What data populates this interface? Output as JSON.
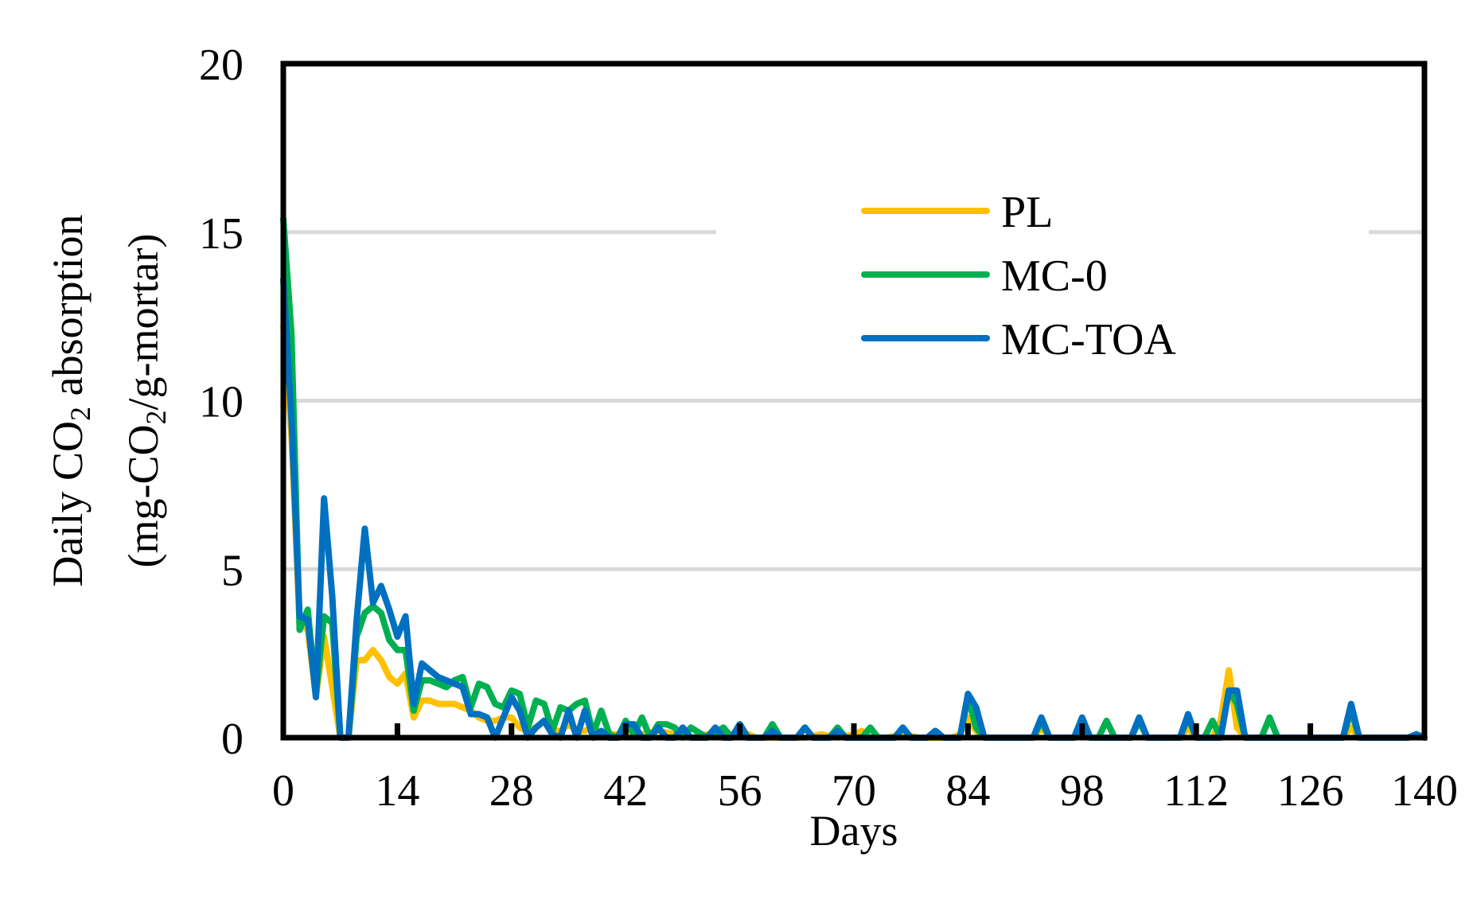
{
  "chart_data": {
    "type": "line",
    "xlabel": "Days",
    "ylabel": {
      "line1": {
        "pre": "Daily CO",
        "sub": "2",
        "post": " absorption"
      },
      "line2": {
        "pre": "(mg-CO",
        "sub": "2",
        "post": "/g-mortar)"
      }
    },
    "xlim": [
      0,
      140
    ],
    "ylim": [
      0,
      20
    ],
    "x_ticks": [
      0,
      14,
      28,
      42,
      56,
      70,
      84,
      98,
      112,
      126,
      140
    ],
    "y_ticks": [
      0,
      5,
      10,
      15,
      20
    ],
    "grid": "horizontal",
    "legend_position": "upper-right",
    "series": [
      {
        "name": "PL",
        "color": "#FFC000",
        "points": [
          [
            0,
            12.2
          ],
          [
            1,
            9.0
          ],
          [
            2,
            3.4
          ],
          [
            3,
            3.2
          ],
          [
            4,
            1.2
          ],
          [
            5,
            3.0
          ],
          [
            6,
            1.5
          ],
          [
            7,
            0
          ],
          [
            8,
            0
          ],
          [
            9,
            2.3
          ],
          [
            10,
            2.3
          ],
          [
            11,
            2.6
          ],
          [
            12,
            2.3
          ],
          [
            13,
            1.8
          ],
          [
            14,
            1.6
          ],
          [
            15,
            1.9
          ],
          [
            16,
            0.6
          ],
          [
            17,
            1.1
          ],
          [
            18,
            1.1
          ],
          [
            19,
            1.0
          ],
          [
            20,
            1.0
          ],
          [
            21,
            1.0
          ],
          [
            22,
            0.9
          ],
          [
            23,
            0.8
          ],
          [
            24,
            0.6
          ],
          [
            25,
            0.5
          ],
          [
            26,
            0.5
          ],
          [
            27,
            0.6
          ],
          [
            28,
            0.6
          ],
          [
            29,
            0.3
          ],
          [
            30,
            0.2
          ],
          [
            31,
            0.3
          ],
          [
            32,
            0.5
          ],
          [
            33,
            0.2
          ],
          [
            34,
            0.2
          ],
          [
            35,
            0.4
          ],
          [
            36,
            0.2
          ],
          [
            37,
            0.2
          ],
          [
            38,
            0.3
          ],
          [
            39,
            0.1
          ],
          [
            40,
            0.1
          ],
          [
            41,
            0.1
          ],
          [
            42,
            0.2
          ],
          [
            44,
            0.1
          ],
          [
            46,
            0.2
          ],
          [
            48,
            0.1
          ],
          [
            50,
            0
          ],
          [
            52,
            0.1
          ],
          [
            54,
            0
          ],
          [
            56,
            0.2
          ],
          [
            58,
            0
          ],
          [
            60,
            0
          ],
          [
            62,
            0
          ],
          [
            64,
            0
          ],
          [
            66,
            0.1
          ],
          [
            68,
            0
          ],
          [
            70,
            0.1
          ],
          [
            71,
            0.2
          ],
          [
            72,
            0
          ],
          [
            74,
            0
          ],
          [
            76,
            0.1
          ],
          [
            78,
            0
          ],
          [
            80,
            0
          ],
          [
            82,
            0
          ],
          [
            83,
            0.1
          ],
          [
            84,
            0.6
          ],
          [
            85,
            0.2
          ],
          [
            86,
            0
          ],
          [
            90,
            0
          ],
          [
            92,
            0
          ],
          [
            93,
            0.3
          ],
          [
            94,
            0
          ],
          [
            97,
            0
          ],
          [
            98,
            0.5
          ],
          [
            99,
            0
          ],
          [
            104,
            0
          ],
          [
            105,
            0.5
          ],
          [
            106,
            0
          ],
          [
            110,
            0
          ],
          [
            111,
            0.3
          ],
          [
            112,
            0
          ],
          [
            114,
            0
          ],
          [
            115,
            0.5
          ],
          [
            116,
            2.0
          ],
          [
            117,
            0.3
          ],
          [
            118,
            0
          ],
          [
            122,
            0
          ],
          [
            124,
            0
          ],
          [
            126,
            0
          ],
          [
            128,
            0
          ],
          [
            130,
            0
          ],
          [
            131,
            0.3
          ],
          [
            132,
            0
          ],
          [
            136,
            0
          ],
          [
            138,
            0
          ],
          [
            139,
            0.1
          ],
          [
            140,
            0
          ]
        ]
      },
      {
        "name": "MC-0",
        "color": "#00B050",
        "points": [
          [
            0,
            15.4
          ],
          [
            1,
            12.0
          ],
          [
            2,
            3.2
          ],
          [
            3,
            3.8
          ],
          [
            4,
            1.3
          ],
          [
            5,
            3.6
          ],
          [
            6,
            3.4
          ],
          [
            7,
            0
          ],
          [
            8,
            0
          ],
          [
            9,
            3.0
          ],
          [
            10,
            3.7
          ],
          [
            11,
            3.9
          ],
          [
            12,
            3.7
          ],
          [
            13,
            2.9
          ],
          [
            14,
            2.6
          ],
          [
            15,
            2.6
          ],
          [
            16,
            0.8
          ],
          [
            17,
            1.7
          ],
          [
            18,
            1.7
          ],
          [
            19,
            1.6
          ],
          [
            20,
            1.5
          ],
          [
            21,
            1.7
          ],
          [
            22,
            1.8
          ],
          [
            23,
            0.9
          ],
          [
            24,
            1.6
          ],
          [
            25,
            1.5
          ],
          [
            26,
            1.0
          ],
          [
            27,
            0.9
          ],
          [
            28,
            1.4
          ],
          [
            29,
            1.3
          ],
          [
            30,
            0.3
          ],
          [
            31,
            1.1
          ],
          [
            32,
            1.0
          ],
          [
            33,
            0.2
          ],
          [
            34,
            0.9
          ],
          [
            35,
            0.8
          ],
          [
            36,
            1.0
          ],
          [
            37,
            1.1
          ],
          [
            38,
            0.1
          ],
          [
            39,
            0.8
          ],
          [
            40,
            0.1
          ],
          [
            41,
            0
          ],
          [
            42,
            0.5
          ],
          [
            43,
            0.1
          ],
          [
            44,
            0.6
          ],
          [
            45,
            0
          ],
          [
            46,
            0.4
          ],
          [
            47,
            0.4
          ],
          [
            48,
            0.3
          ],
          [
            49,
            0
          ],
          [
            50,
            0.3
          ],
          [
            52,
            0
          ],
          [
            54,
            0.3
          ],
          [
            55,
            0
          ],
          [
            56,
            0.4
          ],
          [
            57,
            0
          ],
          [
            59,
            0
          ],
          [
            60,
            0.4
          ],
          [
            61,
            0
          ],
          [
            63,
            0
          ],
          [
            64,
            0.3
          ],
          [
            65,
            0
          ],
          [
            67,
            0
          ],
          [
            68,
            0.3
          ],
          [
            69,
            0
          ],
          [
            71,
            0
          ],
          [
            72,
            0.3
          ],
          [
            73,
            0
          ],
          [
            75,
            0
          ],
          [
            76,
            0.3
          ],
          [
            77,
            0
          ],
          [
            79,
            0
          ],
          [
            80,
            0.2
          ],
          [
            81,
            0
          ],
          [
            83,
            0
          ],
          [
            84,
            1.2
          ],
          [
            85,
            0.3
          ],
          [
            86,
            0
          ],
          [
            92,
            0
          ],
          [
            93,
            0.5
          ],
          [
            94,
            0
          ],
          [
            97,
            0
          ],
          [
            98,
            0.5
          ],
          [
            99,
            0
          ],
          [
            100,
            0
          ],
          [
            101,
            0.5
          ],
          [
            102,
            0
          ],
          [
            104,
            0
          ],
          [
            105,
            0.5
          ],
          [
            106,
            0
          ],
          [
            110,
            0
          ],
          [
            111,
            0.6
          ],
          [
            112,
            0
          ],
          [
            113,
            0
          ],
          [
            114,
            0.5
          ],
          [
            115,
            0
          ],
          [
            116,
            1.4
          ],
          [
            117,
            1.0
          ],
          [
            118,
            0
          ],
          [
            120,
            0
          ],
          [
            121,
            0.6
          ],
          [
            122,
            0
          ],
          [
            126,
            0
          ],
          [
            130,
            0
          ],
          [
            131,
            0.8
          ],
          [
            132,
            0
          ],
          [
            136,
            0
          ],
          [
            138,
            0
          ],
          [
            139,
            0.1
          ],
          [
            140,
            0
          ]
        ]
      },
      {
        "name": "MC-TOA",
        "color": "#0070C0",
        "points": [
          [
            0,
            13.6
          ],
          [
            1,
            9.5
          ],
          [
            2,
            3.6
          ],
          [
            3,
            3.5
          ],
          [
            4,
            1.2
          ],
          [
            5,
            7.1
          ],
          [
            6,
            4.2
          ],
          [
            7,
            0
          ],
          [
            8,
            0
          ],
          [
            9,
            3.5
          ],
          [
            10,
            6.2
          ],
          [
            11,
            4.0
          ],
          [
            12,
            4.5
          ],
          [
            13,
            3.8
          ],
          [
            14,
            3.0
          ],
          [
            15,
            3.6
          ],
          [
            16,
            1.0
          ],
          [
            17,
            2.2
          ],
          [
            18,
            2.0
          ],
          [
            19,
            1.8
          ],
          [
            20,
            1.7
          ],
          [
            21,
            1.6
          ],
          [
            22,
            1.5
          ],
          [
            23,
            0.7
          ],
          [
            24,
            0.7
          ],
          [
            25,
            0.6
          ],
          [
            26,
            0
          ],
          [
            27,
            0.6
          ],
          [
            28,
            1.2
          ],
          [
            29,
            0.8
          ],
          [
            30,
            0
          ],
          [
            31,
            0.3
          ],
          [
            32,
            0.5
          ],
          [
            33,
            0.1
          ],
          [
            34,
            0
          ],
          [
            35,
            0.8
          ],
          [
            36,
            0
          ],
          [
            37,
            0.8
          ],
          [
            38,
            0
          ],
          [
            39,
            0.2
          ],
          [
            40,
            0
          ],
          [
            41,
            0
          ],
          [
            42,
            0.4
          ],
          [
            43,
            0.4
          ],
          [
            44,
            0
          ],
          [
            45,
            0
          ],
          [
            46,
            0.3
          ],
          [
            47,
            0
          ],
          [
            48,
            0
          ],
          [
            49,
            0.3
          ],
          [
            50,
            0
          ],
          [
            52,
            0
          ],
          [
            53,
            0.3
          ],
          [
            54,
            0
          ],
          [
            55,
            0
          ],
          [
            56,
            0.4
          ],
          [
            57,
            0
          ],
          [
            59,
            0
          ],
          [
            60,
            0.2
          ],
          [
            61,
            0
          ],
          [
            63,
            0
          ],
          [
            64,
            0.3
          ],
          [
            65,
            0
          ],
          [
            67,
            0
          ],
          [
            68,
            0.2
          ],
          [
            69,
            0
          ],
          [
            75,
            0
          ],
          [
            76,
            0.3
          ],
          [
            77,
            0
          ],
          [
            79,
            0
          ],
          [
            80,
            0.2
          ],
          [
            81,
            0
          ],
          [
            83,
            0
          ],
          [
            84,
            1.3
          ],
          [
            85,
            0.9
          ],
          [
            86,
            0
          ],
          [
            92,
            0
          ],
          [
            93,
            0.6
          ],
          [
            94,
            0
          ],
          [
            97,
            0
          ],
          [
            98,
            0.6
          ],
          [
            99,
            0
          ],
          [
            104,
            0
          ],
          [
            105,
            0.6
          ],
          [
            106,
            0
          ],
          [
            110,
            0
          ],
          [
            111,
            0.7
          ],
          [
            112,
            0
          ],
          [
            113,
            0
          ],
          [
            114,
            0
          ],
          [
            115,
            0
          ],
          [
            116,
            1.4
          ],
          [
            117,
            1.4
          ],
          [
            118,
            0
          ],
          [
            126,
            0
          ],
          [
            130,
            0
          ],
          [
            131,
            1.0
          ],
          [
            132,
            0
          ],
          [
            136,
            0
          ],
          [
            138,
            0
          ],
          [
            139,
            0.1
          ],
          [
            140,
            0
          ]
        ]
      }
    ]
  }
}
